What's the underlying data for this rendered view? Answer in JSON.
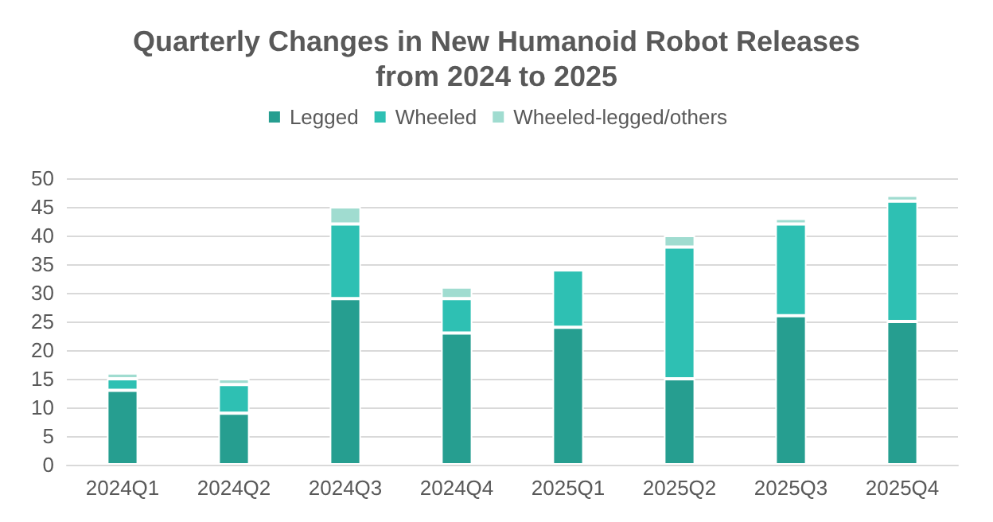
{
  "chart_data": {
    "type": "bar",
    "title": "Quarterly Changes in New Humanoid Robot Releases\nfrom 2024 to 2025",
    "categories": [
      "2024Q1",
      "2024Q2",
      "2024Q3",
      "2024Q4",
      "2025Q1",
      "2025Q2",
      "2025Q3",
      "2025Q4"
    ],
    "stacked": true,
    "series": [
      {
        "name": "Legged",
        "color": "#269e90",
        "values": [
          13,
          9,
          29,
          23,
          24,
          15,
          26,
          25
        ]
      },
      {
        "name": "Wheeled",
        "color": "#2ec0b3",
        "values": [
          2,
          5,
          13,
          6,
          10,
          23,
          16,
          21
        ]
      },
      {
        "name": "Wheeled-legged/others",
        "color": "#a0dcd0",
        "values": [
          1,
          1,
          3,
          2,
          0,
          2,
          1,
          1
        ]
      }
    ],
    "ylim": [
      0,
      50
    ],
    "yticks": [
      0,
      5,
      10,
      15,
      20,
      25,
      30,
      35,
      40,
      45,
      50
    ],
    "grid": "y",
    "legend": "top"
  }
}
